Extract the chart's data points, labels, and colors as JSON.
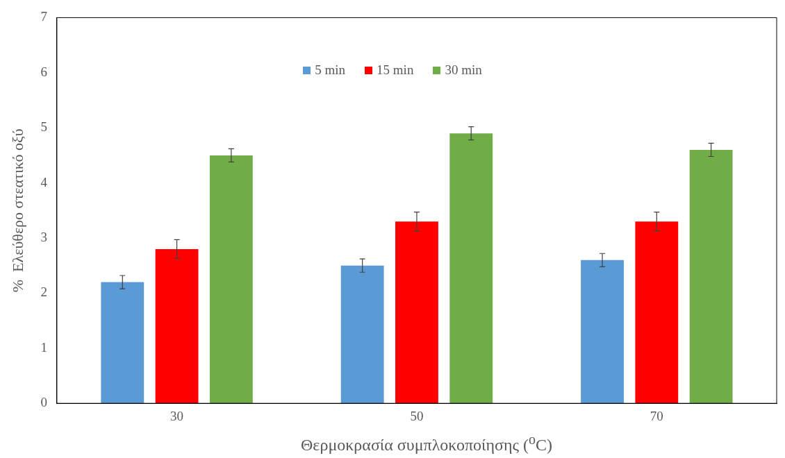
{
  "chart_data": {
    "type": "bar",
    "xlabel": "Θερμοκρασία συμπλοκοποίησης ($^{o}$C)",
    "ylabel": "%  Ελεύθερο στεατικό οξύ",
    "categories": [
      "30",
      "50",
      "70"
    ],
    "series": [
      {
        "name": "5 min",
        "color": "#5b9bd5",
        "values": [
          2.2,
          2.5,
          2.6
        ],
        "errors": [
          0.12,
          0.12,
          0.12
        ]
      },
      {
        "name": "15 min",
        "color": "#ff0000",
        "values": [
          2.8,
          3.3,
          3.3
        ],
        "errors": [
          0.17,
          0.17,
          0.17
        ]
      },
      {
        "name": "30 min",
        "color": "#70ad47",
        "values": [
          4.5,
          4.9,
          4.6
        ],
        "errors": [
          0.12,
          0.12,
          0.12
        ]
      }
    ],
    "ylim": [
      0,
      7
    ],
    "yticks": [
      0,
      1,
      2,
      3,
      4,
      5,
      6,
      7
    ],
    "grid": false,
    "legend": "top"
  }
}
